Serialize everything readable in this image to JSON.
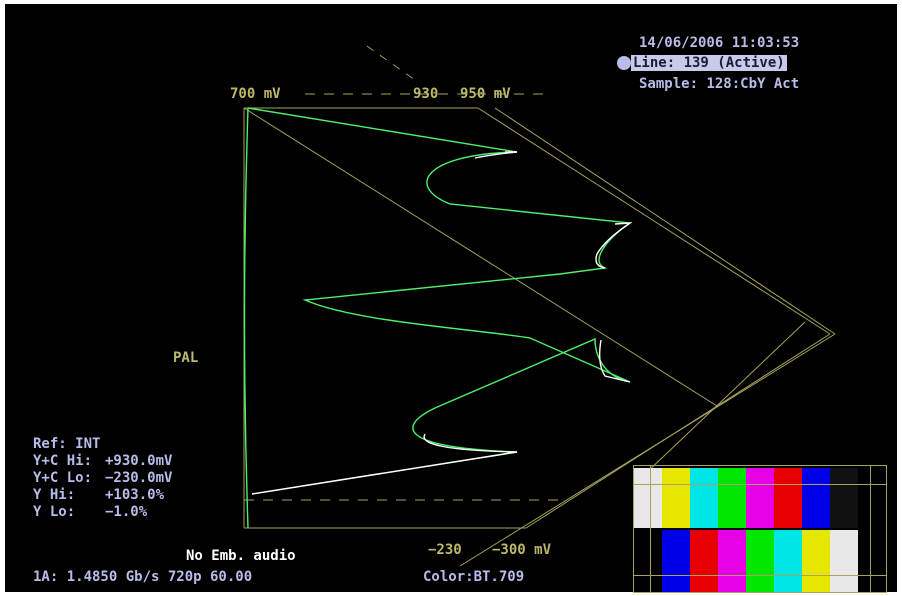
{
  "header": {
    "datetime": "14/06/2006 11:03:53",
    "line": "Line: 139 (Active)",
    "sample": "Sample:  128:CbY Act"
  },
  "scale": {
    "top_left": "700 mV",
    "top_mid": "930",
    "top_right": "950 mV",
    "bottom_left": "−230",
    "bottom_right": "−300 mV",
    "standard": "PAL"
  },
  "readout": {
    "ref": "Ref: INT",
    "rows": [
      {
        "label": "Y+C Hi:",
        "value": "+930.0mV"
      },
      {
        "label": "Y+C Lo:",
        "value": "−230.0mV"
      },
      {
        "label": "Y Hi:",
        "value": "+103.0%"
      },
      {
        "label": "Y Lo:",
        "value": "−1.0%"
      }
    ]
  },
  "status": {
    "audio": "No Emb. audio",
    "signal": "1A: 1.4850 Gb/s 720p 60.00",
    "color": "Color:BT.709"
  },
  "colors": {
    "graticule": "#a7a35a",
    "trace_green": "#4df06a",
    "trace_white": "#ffffff",
    "text": "#b8bce8"
  },
  "thumbnail": {
    "top_bars": [
      "#e8e8e8",
      "#e6e600",
      "#00e6e6",
      "#00e600",
      "#e600e6",
      "#e60000",
      "#0000e6",
      "#111111",
      "#000000"
    ],
    "bottom_bars": [
      "#000000",
      "#0000e6",
      "#e60000",
      "#e600e6",
      "#00e600",
      "#00e6e6",
      "#e6e600",
      "#e8e8e8",
      "#000000"
    ]
  }
}
